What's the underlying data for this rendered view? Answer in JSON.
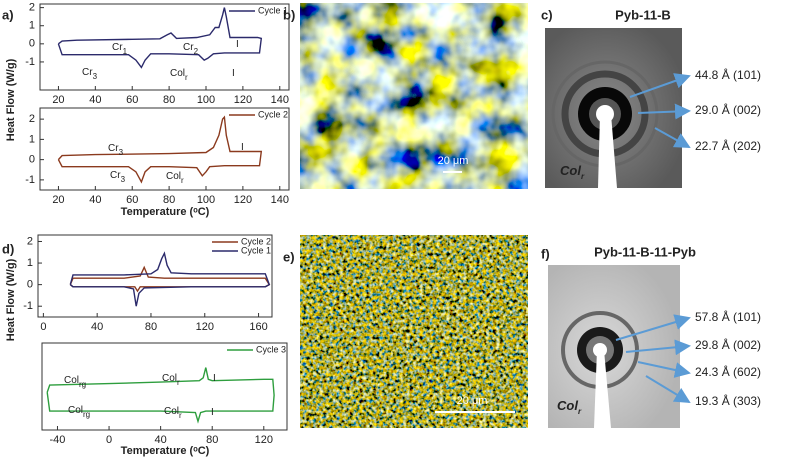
{
  "chart_data": [
    {
      "type": "line",
      "xlim": [
        10,
        145
      ],
      "xticks": [
        20,
        40,
        60,
        80,
        100,
        120,
        140
      ],
      "ylim": [
        -2.55,
        2.2
      ],
      "yticks": [
        2,
        1,
        0,
        -1
      ],
      "series": [
        {
          "name": "Cycle 1",
          "color": "#2b2a6b",
          "x": [
            20,
            22,
            30,
            60,
            75,
            79,
            81,
            84,
            95,
            102,
            105,
            107,
            109,
            110,
            111,
            113,
            120,
            128,
            130,
            129,
            120,
            110,
            104,
            101,
            99,
            96,
            80,
            70,
            67,
            65,
            62,
            58,
            40,
            22,
            20
          ],
          "values": [
            0,
            0.15,
            0.2,
            0.25,
            0.28,
            0.5,
            0.6,
            0.3,
            0.35,
            0.5,
            0.9,
            0.9,
            1.6,
            2.0,
            1.5,
            0.35,
            0.35,
            0.35,
            0.3,
            -0.5,
            -0.5,
            -0.5,
            -0.55,
            -0.8,
            -0.9,
            -0.6,
            -0.55,
            -0.55,
            -0.9,
            -1.3,
            -0.9,
            -0.6,
            -0.6,
            -0.6,
            0
          ]
        }
      ],
      "annotations": [
        {
          "text": "Cr",
          "sub": "1"
        },
        {
          "text": "Cr",
          "sub": "2"
        },
        {
          "text": "I"
        },
        {
          "text": "Cr",
          "sub": "3"
        },
        {
          "text": "Col",
          "sub": "r"
        },
        {
          "text": "I"
        }
      ]
    },
    {
      "type": "line",
      "xlim": [
        10,
        145
      ],
      "xticks": [
        20,
        40,
        60,
        80,
        100,
        120,
        140
      ],
      "ylim": [
        -1.5,
        2.55
      ],
      "yticks": [
        2,
        1,
        0,
        -1
      ],
      "series": [
        {
          "name": "Cycle 2",
          "color": "#8b3a1e",
          "x": [
            20,
            22,
            40,
            80,
            100,
            104,
            107,
            109,
            110,
            111,
            113,
            120,
            130,
            129,
            110,
            102,
            100,
            98,
            95,
            80,
            70,
            67,
            65,
            62,
            58,
            40,
            22,
            20
          ],
          "values": [
            0,
            0.2,
            0.25,
            0.3,
            0.35,
            0.6,
            1.2,
            2.0,
            2.1,
            1.2,
            0.4,
            0.4,
            0.4,
            -0.3,
            -0.3,
            -0.35,
            -0.6,
            -0.8,
            -0.4,
            -0.35,
            -0.35,
            -0.6,
            -1.1,
            -0.6,
            -0.35,
            -0.35,
            -0.35,
            0
          ]
        }
      ],
      "annotations": [
        {
          "text": "Cr",
          "sub": "3"
        },
        {
          "text": "I"
        },
        {
          "text": "Cr",
          "sub": "3"
        },
        {
          "text": "Col",
          "sub": "r"
        }
      ]
    },
    {
      "type": "line",
      "xlim": [
        -4,
        170
      ],
      "xticks": [
        0,
        40,
        80,
        120,
        160
      ],
      "ylim": [
        -1.5,
        2.3
      ],
      "yticks": [
        2,
        1,
        0,
        -1
      ],
      "series": [
        {
          "name": "Cycle 2",
          "color": "#8b3a1e",
          "x": [
            20,
            22,
            60,
            72,
            75,
            78,
            90,
            165,
            168,
            165,
            100,
            72,
            70,
            68,
            22,
            20
          ],
          "values": [
            0,
            0.3,
            0.3,
            0.4,
            0.8,
            0.35,
            0.3,
            0.3,
            0,
            -0.1,
            -0.1,
            -0.1,
            -0.3,
            -0.1,
            -0.1,
            0
          ]
        },
        {
          "name": "Cycle 1",
          "color": "#2b2a6b",
          "x": [
            20,
            22,
            60,
            80,
            85,
            88,
            90,
            92,
            95,
            110,
            165,
            168,
            165,
            110,
            75,
            71,
            69,
            67,
            60,
            22,
            20
          ],
          "values": [
            0,
            0.45,
            0.45,
            0.5,
            0.7,
            1.2,
            1.45,
            0.9,
            0.55,
            0.5,
            0.5,
            0,
            -0.1,
            -0.1,
            -0.15,
            -0.4,
            -1.0,
            -0.2,
            -0.1,
            -0.1,
            0
          ]
        }
      ]
    },
    {
      "type": "line",
      "xlim": [
        -52,
        138
      ],
      "xticks": [
        -40,
        0,
        40,
        80,
        120
      ],
      "ylim": [
        -1.5,
        1.5
      ],
      "series": [
        {
          "name": "Cycle 3",
          "color": "#2e9e3e",
          "x": [
            -48,
            -46,
            0,
            40,
            70,
            73,
            75,
            77,
            80,
            120,
            127,
            128,
            127,
            120,
            75,
            71,
            69,
            67,
            40,
            0,
            -46,
            -48
          ],
          "values": [
            -0.2,
            0.05,
            0.1,
            0.15,
            0.2,
            0.3,
            0.65,
            0.25,
            0.2,
            0.25,
            0.25,
            -0.3,
            -0.85,
            -0.85,
            -0.85,
            -0.9,
            -1.2,
            -0.9,
            -0.85,
            -0.85,
            -0.85,
            -0.2
          ]
        }
      ],
      "annotations": [
        {
          "text": "Col",
          "sub": "rg"
        },
        {
          "text": "Col",
          "sub": "r"
        },
        {
          "text": "I"
        },
        {
          "text": "Col",
          "sub": "rg"
        },
        {
          "text": "Col",
          "sub": "r"
        },
        {
          "text": "I"
        }
      ]
    }
  ],
  "panels": {
    "a": {
      "label": "a)",
      "y_label": "Heat Flow (W/g)",
      "x_label": "Temperature (ᵒC)"
    },
    "b": {
      "label": "b)",
      "scale_bar": "20 μm"
    },
    "c": {
      "label": "c)",
      "title": "Pyb-11-B",
      "phase": {
        "text": "Col",
        "sub": "r"
      },
      "reflections": [
        "44.8 Å (101)",
        "29.0 Å (002)",
        "22.7 Å (202)"
      ]
    },
    "d": {
      "label": "d)",
      "y_label": "Heat Flow (W/g)",
      "x_label": "Temperature (ᵒC)"
    },
    "e": {
      "label": "e)",
      "scale_bar": "20 μm"
    },
    "f": {
      "label": "f)",
      "title": "Pyb-11-B-11-Pyb",
      "phase": {
        "text": "Col",
        "sub": "r"
      },
      "reflections": [
        "57.8 Å (101)",
        "29.8 Å (002)",
        "24.3 Å (602)",
        "19.3 Å (303)"
      ]
    }
  }
}
